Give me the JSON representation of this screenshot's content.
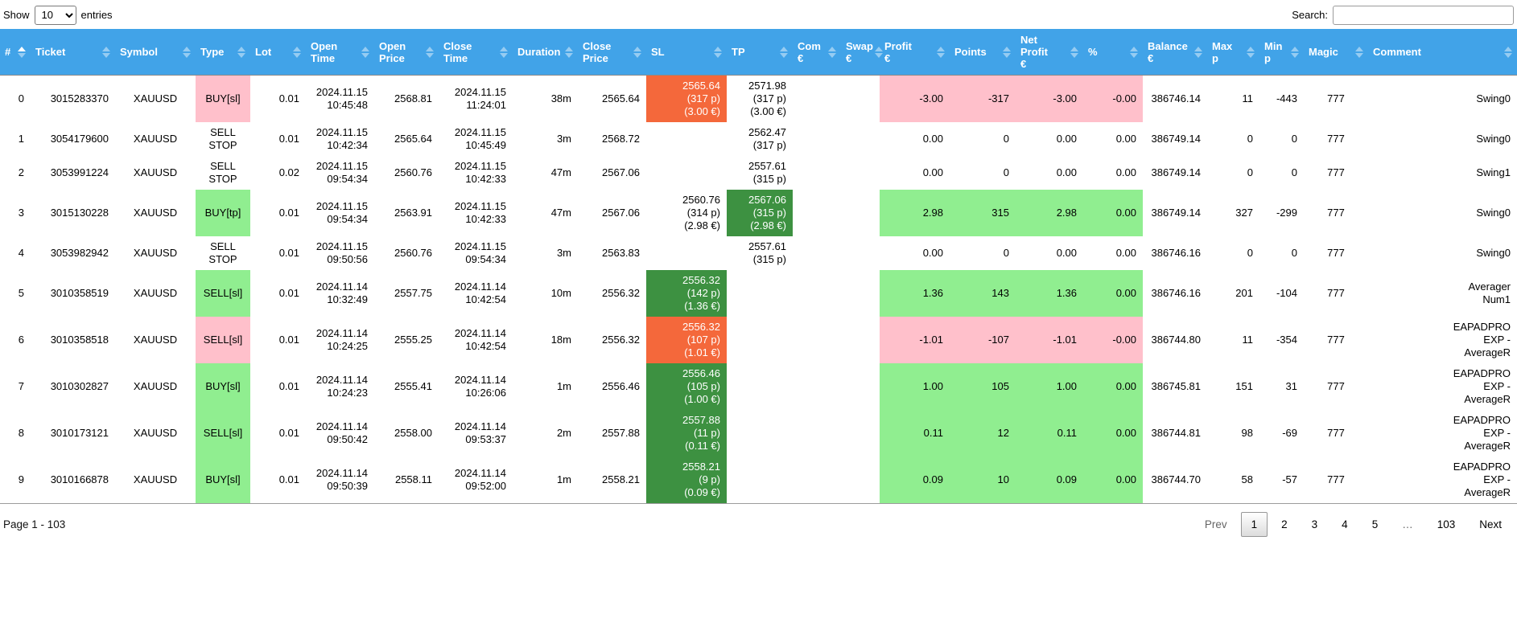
{
  "controls": {
    "show_label": "Show",
    "page_size": "10",
    "entries_label": "entries",
    "search_label": "Search:",
    "search_value": ""
  },
  "colors": {
    "header_bg": "#41A3E8",
    "win_light": "#90EE90",
    "loss_light": "#FFC0CB",
    "win_dark": "#3D9141",
    "loss_dark": "#F4683B"
  },
  "table": {
    "columns": [
      {
        "key": "num",
        "label": "#",
        "sorted": "asc"
      },
      {
        "key": "ticket",
        "label": "Ticket"
      },
      {
        "key": "symbol",
        "label": "Symbol"
      },
      {
        "key": "type",
        "label": "Type"
      },
      {
        "key": "lot",
        "label": "Lot"
      },
      {
        "key": "open_time",
        "label": "Open\nTime"
      },
      {
        "key": "open_price",
        "label": "Open\nPrice"
      },
      {
        "key": "close_time",
        "label": "Close\nTime"
      },
      {
        "key": "duration",
        "label": "Duration"
      },
      {
        "key": "close_price",
        "label": "Close\nPrice"
      },
      {
        "key": "sl",
        "label": "SL"
      },
      {
        "key": "tp",
        "label": "TP"
      },
      {
        "key": "com",
        "label": "Com\n€"
      },
      {
        "key": "swap",
        "label": "Swap\n€"
      },
      {
        "key": "profit",
        "label": "Profit\n€"
      },
      {
        "key": "points",
        "label": "Points"
      },
      {
        "key": "net_profit",
        "label": "Net\nProfit\n€"
      },
      {
        "key": "pct",
        "label": "%"
      },
      {
        "key": "balance",
        "label": "Balance\n€"
      },
      {
        "key": "max_p",
        "label": "Max\np"
      },
      {
        "key": "min_p",
        "label": "Min\np"
      },
      {
        "key": "magic",
        "label": "Magic"
      },
      {
        "key": "comment",
        "label": "Comment"
      }
    ],
    "rows": [
      {
        "num": "0",
        "ticket": "3015283370",
        "symbol": "XAUUSD",
        "type": "BUY[sl]",
        "type_color": "loss",
        "lot": "0.01",
        "open_time": "2024.11.15\n10:45:48",
        "open_price": "2568.81",
        "close_time": "2024.11.15\n11:24:01",
        "duration": "38m",
        "close_price": "2565.64",
        "sl": "2565.64\n(317 p)\n(3.00 €)",
        "sl_color": "loss",
        "tp": "2571.98\n(317 p)\n(3.00 €)",
        "tp_color": "none",
        "com": "",
        "swap": "",
        "profit": "-3.00",
        "points": "-317",
        "net_profit": "-3.00",
        "pct": "-0.00",
        "result_color": "loss",
        "balance": "386746.14",
        "max_p": "11",
        "min_p": "-443",
        "magic": "777",
        "comment": "Swing0"
      },
      {
        "num": "1",
        "ticket": "3054179600",
        "symbol": "XAUUSD",
        "type": "SELL\nSTOP",
        "type_color": "none",
        "lot": "0.01",
        "open_time": "2024.11.15\n10:42:34",
        "open_price": "2565.64",
        "close_time": "2024.11.15\n10:45:49",
        "duration": "3m",
        "close_price": "2568.72",
        "sl": "",
        "sl_color": "none",
        "tp": "2562.47\n(317 p)",
        "tp_color": "none",
        "com": "",
        "swap": "",
        "profit": "0.00",
        "points": "0",
        "net_profit": "0.00",
        "pct": "0.00",
        "result_color": "none",
        "balance": "386749.14",
        "max_p": "0",
        "min_p": "0",
        "magic": "777",
        "comment": "Swing0"
      },
      {
        "num": "2",
        "ticket": "3053991224",
        "symbol": "XAUUSD",
        "type": "SELL\nSTOP",
        "type_color": "none",
        "lot": "0.02",
        "open_time": "2024.11.15\n09:54:34",
        "open_price": "2560.76",
        "close_time": "2024.11.15\n10:42:33",
        "duration": "47m",
        "close_price": "2567.06",
        "sl": "",
        "sl_color": "none",
        "tp": "2557.61\n(315 p)",
        "tp_color": "none",
        "com": "",
        "swap": "",
        "profit": "0.00",
        "points": "0",
        "net_profit": "0.00",
        "pct": "0.00",
        "result_color": "none",
        "balance": "386749.14",
        "max_p": "0",
        "min_p": "0",
        "magic": "777",
        "comment": "Swing1"
      },
      {
        "num": "3",
        "ticket": "3015130228",
        "symbol": "XAUUSD",
        "type": "BUY[tp]",
        "type_color": "win",
        "lot": "0.01",
        "open_time": "2024.11.15\n09:54:34",
        "open_price": "2563.91",
        "close_time": "2024.11.15\n10:42:33",
        "duration": "47m",
        "close_price": "2567.06",
        "sl": "2560.76\n(314 p)\n(2.98 €)",
        "sl_color": "none",
        "tp": "2567.06\n(315 p)\n(2.98 €)",
        "tp_color": "win",
        "com": "",
        "swap": "",
        "profit": "2.98",
        "points": "315",
        "net_profit": "2.98",
        "pct": "0.00",
        "result_color": "win",
        "balance": "386749.14",
        "max_p": "327",
        "min_p": "-299",
        "magic": "777",
        "comment": "Swing0"
      },
      {
        "num": "4",
        "ticket": "3053982942",
        "symbol": "XAUUSD",
        "type": "SELL\nSTOP",
        "type_color": "none",
        "lot": "0.01",
        "open_time": "2024.11.15\n09:50:56",
        "open_price": "2560.76",
        "close_time": "2024.11.15\n09:54:34",
        "duration": "3m",
        "close_price": "2563.83",
        "sl": "",
        "sl_color": "none",
        "tp": "2557.61\n(315 p)",
        "tp_color": "none",
        "com": "",
        "swap": "",
        "profit": "0.00",
        "points": "0",
        "net_profit": "0.00",
        "pct": "0.00",
        "result_color": "none",
        "balance": "386746.16",
        "max_p": "0",
        "min_p": "0",
        "magic": "777",
        "comment": "Swing0"
      },
      {
        "num": "5",
        "ticket": "3010358519",
        "symbol": "XAUUSD",
        "type": "SELL[sl]",
        "type_color": "win",
        "lot": "0.01",
        "open_time": "2024.11.14\n10:32:49",
        "open_price": "2557.75",
        "close_time": "2024.11.14\n10:42:54",
        "duration": "10m",
        "close_price": "2556.32",
        "sl": "2556.32\n(142 p)\n(1.36 €)",
        "sl_color": "win",
        "tp": "",
        "tp_color": "none",
        "com": "",
        "swap": "",
        "profit": "1.36",
        "points": "143",
        "net_profit": "1.36",
        "pct": "0.00",
        "result_color": "win",
        "balance": "386746.16",
        "max_p": "201",
        "min_p": "-104",
        "magic": "777",
        "comment": "Averager\nNum1"
      },
      {
        "num": "6",
        "ticket": "3010358518",
        "symbol": "XAUUSD",
        "type": "SELL[sl]",
        "type_color": "loss",
        "lot": "0.01",
        "open_time": "2024.11.14\n10:24:25",
        "open_price": "2555.25",
        "close_time": "2024.11.14\n10:42:54",
        "duration": "18m",
        "close_price": "2556.32",
        "sl": "2556.32\n(107 p)\n(1.01 €)",
        "sl_color": "loss",
        "tp": "",
        "tp_color": "none",
        "com": "",
        "swap": "",
        "profit": "-1.01",
        "points": "-107",
        "net_profit": "-1.01",
        "pct": "-0.00",
        "result_color": "loss",
        "balance": "386744.80",
        "max_p": "11",
        "min_p": "-354",
        "magic": "777",
        "comment": "EAPADPRO\nEXP -\nAverageR"
      },
      {
        "num": "7",
        "ticket": "3010302827",
        "symbol": "XAUUSD",
        "type": "BUY[sl]",
        "type_color": "win",
        "lot": "0.01",
        "open_time": "2024.11.14\n10:24:23",
        "open_price": "2555.41",
        "close_time": "2024.11.14\n10:26:06",
        "duration": "1m",
        "close_price": "2556.46",
        "sl": "2556.46\n(105 p)\n(1.00 €)",
        "sl_color": "win",
        "tp": "",
        "tp_color": "none",
        "com": "",
        "swap": "",
        "profit": "1.00",
        "points": "105",
        "net_profit": "1.00",
        "pct": "0.00",
        "result_color": "win",
        "balance": "386745.81",
        "max_p": "151",
        "min_p": "31",
        "magic": "777",
        "comment": "EAPADPRO\nEXP -\nAverageR"
      },
      {
        "num": "8",
        "ticket": "3010173121",
        "symbol": "XAUUSD",
        "type": "SELL[sl]",
        "type_color": "win",
        "lot": "0.01",
        "open_time": "2024.11.14\n09:50:42",
        "open_price": "2558.00",
        "close_time": "2024.11.14\n09:53:37",
        "duration": "2m",
        "close_price": "2557.88",
        "sl": "2557.88\n(11 p)\n(0.11 €)",
        "sl_color": "win",
        "tp": "",
        "tp_color": "none",
        "com": "",
        "swap": "",
        "profit": "0.11",
        "points": "12",
        "net_profit": "0.11",
        "pct": "0.00",
        "result_color": "win",
        "balance": "386744.81",
        "max_p": "98",
        "min_p": "-69",
        "magic": "777",
        "comment": "EAPADPRO\nEXP -\nAverageR"
      },
      {
        "num": "9",
        "ticket": "3010166878",
        "symbol": "XAUUSD",
        "type": "BUY[sl]",
        "type_color": "win",
        "lot": "0.01",
        "open_time": "2024.11.14\n09:50:39",
        "open_price": "2558.11",
        "close_time": "2024.11.14\n09:52:00",
        "duration": "1m",
        "close_price": "2558.21",
        "sl": "2558.21\n(9 p)\n(0.09 €)",
        "sl_color": "win",
        "tp": "",
        "tp_color": "none",
        "com": "",
        "swap": "",
        "profit": "0.09",
        "points": "10",
        "net_profit": "0.09",
        "pct": "0.00",
        "result_color": "win",
        "balance": "386744.70",
        "max_p": "58",
        "min_p": "-57",
        "magic": "777",
        "comment": "EAPADPRO\nEXP -\nAverageR"
      }
    ]
  },
  "footer": {
    "page_info": "Page 1 - 103",
    "active_page": "1",
    "pagination": [
      "Prev",
      "1",
      "2",
      "3",
      "4",
      "5",
      "…",
      "103",
      "Next"
    ]
  }
}
